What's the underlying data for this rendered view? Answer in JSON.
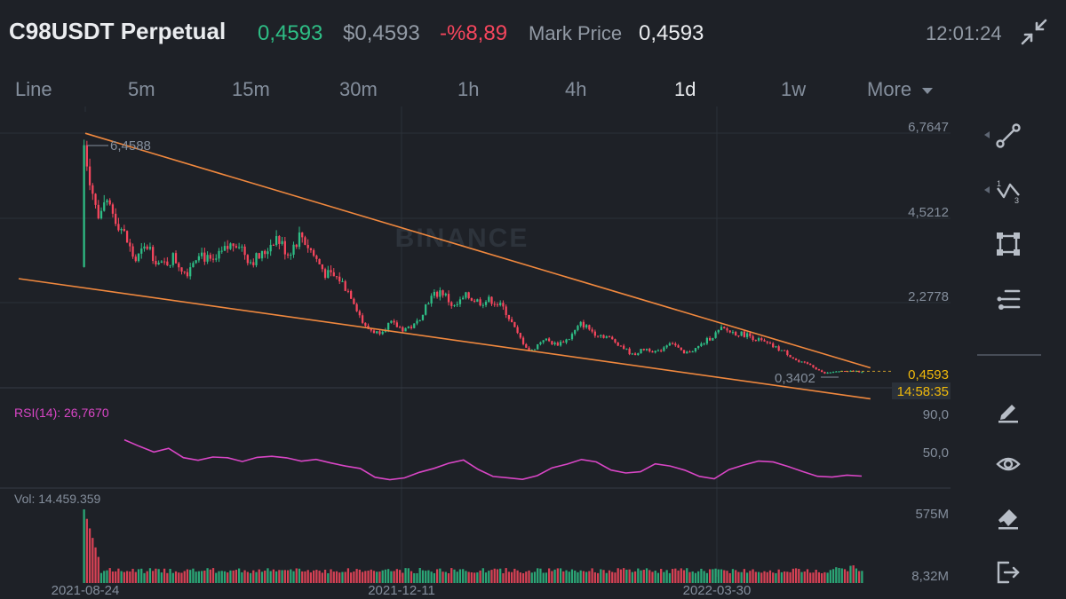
{
  "header": {
    "symbol": "C98USDT Perpetual",
    "last_price": "0,4593",
    "usd_price": "$0,4593",
    "change": "-%8,89",
    "mark_label": "Mark Price",
    "mark_value": "0,4593",
    "time": "12:01:24",
    "exit_icon": "exit-fullscreen-icon"
  },
  "intervals": [
    "Line",
    "5m",
    "15m",
    "30m",
    "1h",
    "4h",
    "1d",
    "1w",
    "More"
  ],
  "active_interval": "1d",
  "colors": {
    "up": "#2ebd85",
    "down": "#f6465d",
    "trend": "#f0883e",
    "rsi": "#d946c6",
    "price_tag": "#f0b90b",
    "bg": "#1e2127",
    "grid": "#2b3139",
    "text_muted": "#848e9c"
  },
  "watermark": "BINANCE",
  "chart_data": {
    "type": "candlestick",
    "x_start": "2021-08-24",
    "x_end": "2022-05-20",
    "x_tick_labels": [
      "2021-08-24",
      "2021-12-11",
      "2022-03-30"
    ],
    "price_axis_labels": [
      "6,7647",
      "4,5212",
      "2,2778"
    ],
    "price_range": [
      0.0343,
      6.7647
    ],
    "high_marker": "6,4588",
    "low_marker": "0,3402",
    "last_price_tag": "0,4593",
    "countdown_tag": "14:58:35",
    "close_series": [
      6.3,
      4.5,
      4.7,
      4.1,
      3.3,
      3.7,
      3.15,
      3.4,
      3.0,
      3.6,
      3.2,
      3.55,
      3.85,
      3.3,
      3.45,
      3.95,
      3.5,
      4.0,
      3.45,
      2.95,
      2.85,
      2.4,
      1.6,
      1.45,
      1.7,
      1.55,
      1.65,
      2.3,
      2.55,
      2.1,
      2.4,
      2.25,
      2.3,
      2.05,
      1.4,
      0.95,
      1.3,
      1.15,
      1.3,
      1.7,
      1.45,
      1.35,
      1.15,
      0.88,
      1.05,
      0.95,
      1.25,
      0.9,
      1.05,
      1.3,
      1.55,
      1.45,
      1.4,
      1.25,
      1.1,
      0.95,
      0.7,
      0.62,
      0.4,
      0.46,
      0.45,
      0.46
    ],
    "trendlines": [
      {
        "name": "upper",
        "from": [
          "2021-08-24",
          6.6
        ],
        "to": [
          "2022-05-22",
          0.55
        ]
      },
      {
        "name": "lower",
        "from": [
          "2021-08-01",
          2.85
        ],
        "to": [
          "2022-05-22",
          -0.25
        ]
      }
    ],
    "rsi": {
      "label": "RSI(14): 26,7670",
      "axis_labels": [
        "90,0",
        "50,0"
      ],
      "series": [
        68,
        60,
        56,
        58,
        49,
        48,
        51,
        49,
        46,
        48,
        52,
        50,
        47,
        46,
        44,
        41,
        40,
        30,
        28,
        30,
        32,
        38,
        44,
        48,
        38,
        30,
        29,
        26,
        30,
        38,
        44,
        48,
        44,
        38,
        35,
        33,
        41,
        42,
        36,
        31,
        29,
        38,
        43,
        47,
        46,
        41,
        33,
        28,
        27,
        30,
        30
      ]
    },
    "volume": {
      "label": "Vol: 14.459.359",
      "axis_labels": [
        "575M",
        "8,32M"
      ]
    }
  },
  "tools": [
    "trendline-tool-icon",
    "pattern-tool-icon",
    "rectangle-tool-icon",
    "fib-tool-icon",
    "pencil-icon",
    "eye-icon",
    "eraser-icon",
    "exit-icon"
  ]
}
